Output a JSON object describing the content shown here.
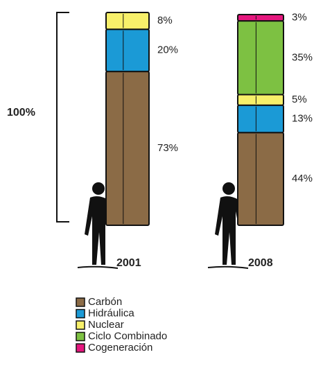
{
  "chart_data": {
    "type": "stacked_bar",
    "annotation": "100%",
    "categories": [
      "2001",
      "2008"
    ],
    "series": [
      {
        "name": "Carbón",
        "color": "#8b6b46",
        "values": [
          73,
          44
        ],
        "value_labels": [
          "73%",
          "44%"
        ]
      },
      {
        "name": "Hidráulica",
        "color": "#1b9ad6",
        "values": [
          20,
          13
        ],
        "value_labels": [
          "20%",
          "13%"
        ]
      },
      {
        "name": "Nuclear",
        "color": "#f7f06a",
        "values": [
          8,
          5
        ],
        "value_labels": [
          "8%",
          "5%"
        ]
      },
      {
        "name": "Ciclo Combinado",
        "color": "#7dc142",
        "values": [
          null,
          35
        ],
        "value_labels": [
          null,
          "35%"
        ]
      },
      {
        "name": "Cogeneración",
        "color": "#e5177e",
        "values": [
          null,
          3
        ],
        "value_labels": [
          null,
          "3%"
        ]
      }
    ]
  }
}
